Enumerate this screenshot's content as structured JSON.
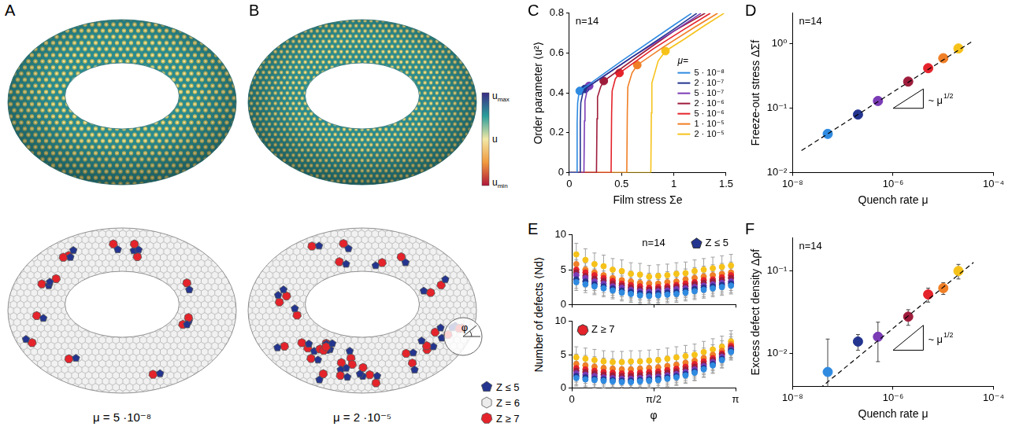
{
  "tori": {
    "panels": [
      {
        "label": "A",
        "caption": "μ = 5 ·10⁻⁸"
      },
      {
        "label": "B",
        "caption": "μ = 2 ·10⁻⁵"
      }
    ],
    "colorbar": {
      "labels": [
        "umax",
        "u",
        "umin"
      ]
    },
    "defect_legend": [
      {
        "label": "Z ≤ 5",
        "color": "#23358f",
        "marker": "pentagon"
      },
      {
        "label": "Z = 6",
        "color": "#ececec",
        "marker": "hexagon"
      },
      {
        "label": "Z ≥ 7",
        "color": "#e5232b",
        "marker": "heptagon"
      }
    ],
    "angle_label": "φ"
  },
  "chart_data": [
    {
      "panel": "C",
      "type": "line",
      "annotations": [
        "n=14"
      ],
      "xlabel": "Film stress Σe",
      "ylabel": "Order parameter ⟨u²⟩",
      "xlim": [
        0,
        1.5
      ],
      "xticks": [
        0,
        0.5,
        1,
        1.5
      ],
      "ylim": [
        0,
        0.8
      ],
      "yticks": [
        0,
        0.2,
        0.4,
        0.6,
        0.8
      ],
      "legend": "right",
      "legend_title": "μ=",
      "marker": "circle",
      "series": [
        {
          "name": "5 · 10⁻⁸",
          "color": "#2f8ae0",
          "x": [
            0,
            0.07,
            0.075,
            0.08,
            0.09,
            0.1,
            0.5,
            1,
            1.17
          ],
          "values": [
            0,
            0,
            0.25,
            0.35,
            0.39,
            0.41,
            0.56,
            0.74,
            0.8
          ],
          "freeze_out": {
            "x": 0.1,
            "value": 0.41
          }
        },
        {
          "name": "2 · 10⁻⁷",
          "color": "#23358f",
          "x": [
            0,
            0.1,
            0.105,
            0.11,
            0.13,
            0.15,
            0.6,
            1,
            1.22
          ],
          "values": [
            0,
            0,
            0.25,
            0.35,
            0.4,
            0.42,
            0.58,
            0.72,
            0.8
          ],
          "freeze_out": {
            "x": 0.15,
            "value": 0.42
          }
        },
        {
          "name": "5 · 10⁻⁷",
          "color": "#7a3bb5",
          "x": [
            0,
            0.14,
            0.145,
            0.15,
            0.17,
            0.19,
            0.6,
            1,
            1.26
          ],
          "values": [
            0,
            0,
            0.26,
            0.36,
            0.41,
            0.435,
            0.58,
            0.71,
            0.8
          ],
          "freeze_out": {
            "x": 0.19,
            "value": 0.435
          }
        },
        {
          "name": "2 · 10⁻⁶",
          "color": "#9e1c3b",
          "x": [
            0,
            0.26,
            0.265,
            0.27,
            0.3,
            0.33,
            0.7,
            1,
            1.3
          ],
          "values": [
            0,
            0,
            0.27,
            0.38,
            0.43,
            0.46,
            0.6,
            0.71,
            0.8
          ],
          "freeze_out": {
            "x": 0.33,
            "value": 0.46
          }
        },
        {
          "name": "5 · 10⁻⁶",
          "color": "#e5232b",
          "x": [
            0,
            0.4,
            0.405,
            0.41,
            0.44,
            0.48,
            0.8,
            1.1,
            1.35
          ],
          "values": [
            0,
            0,
            0.3,
            0.41,
            0.47,
            0.5,
            0.62,
            0.72,
            0.8
          ],
          "freeze_out": {
            "x": 0.48,
            "value": 0.5
          }
        },
        {
          "name": "1 · 10⁻⁵",
          "color": "#f07f26",
          "x": [
            0,
            0.55,
            0.555,
            0.56,
            0.6,
            0.65,
            0.9,
            1.2,
            1.42
          ],
          "values": [
            0,
            0,
            0.3,
            0.43,
            0.5,
            0.54,
            0.63,
            0.73,
            0.8
          ],
          "freeze_out": {
            "x": 0.65,
            "value": 0.54
          }
        },
        {
          "name": "2 · 10⁻⁵",
          "color": "#f6c21a",
          "x": [
            0,
            0.78,
            0.785,
            0.79,
            0.85,
            0.92,
            1.1,
            1.3,
            1.48
          ],
          "values": [
            0,
            0,
            0.3,
            0.45,
            0.56,
            0.61,
            0.67,
            0.74,
            0.8
          ],
          "freeze_out": {
            "x": 0.92,
            "value": 0.61
          }
        }
      ]
    },
    {
      "panel": "D",
      "type": "scatter",
      "log": true,
      "annotations": [
        "n=14"
      ],
      "xlabel": "Quench rate μ",
      "ylabel": "Freeze-out stress ΔΣf",
      "xlim": [
        1e-08,
        0.0001
      ],
      "xticks": [
        {
          "value": 1e-08,
          "label": "10⁻⁸"
        },
        {
          "value": 1e-06,
          "label": "10⁻⁶"
        },
        {
          "value": 0.0001,
          "label": "10⁻⁴"
        }
      ],
      "ylim": [
        0.01,
        3
      ],
      "yticks": [
        {
          "value": 0.01,
          "label": "10⁻²"
        },
        {
          "value": 0.1,
          "label": "10⁻¹"
        },
        {
          "value": 1,
          "label": "10⁰"
        }
      ],
      "marker": "circle",
      "x": [
        5e-08,
        2e-07,
        5e-07,
        2e-06,
        5e-06,
        1e-05,
        2e-05
      ],
      "values": [
        0.04,
        0.08,
        0.13,
        0.26,
        0.42,
        0.6,
        0.85
      ],
      "colors": [
        "#2f8ae0",
        "#23358f",
        "#7a3bb5",
        "#9e1c3b",
        "#e5232b",
        "#f07f26",
        "#f6c21a"
      ],
      "fit": {
        "x": [
          1.5e-08,
          4e-05
        ],
        "values": [
          0.022,
          1.13
        ],
        "line_style": "dashed",
        "color": "#000000"
      },
      "slope_triangle": {
        "x": [
          1e-06,
          4e-06
        ],
        "values": [
          0.1,
          0.2
        ],
        "label": "~ μ",
        "superscript": "1/2"
      }
    },
    {
      "panel": "E",
      "type": "scatter",
      "annotations": [
        "n=14"
      ],
      "xlabel": "φ",
      "ylabel": "Number of defects ⟨Nd⟩",
      "x": [
        0.087,
        0.262,
        0.436,
        0.611,
        0.785,
        0.96,
        1.134,
        1.309,
        1.484,
        1.658,
        1.833,
        2.007,
        2.182,
        2.356,
        2.531,
        2.705,
        2.88,
        3.054
      ],
      "xlim": [
        0,
        3.1416
      ],
      "xticks": [
        0,
        {
          "value": 1.5708,
          "label": "π/2"
        },
        {
          "value": 3.1416,
          "label": "π"
        }
      ],
      "ylim": [
        0,
        10
      ],
      "yticks": [
        0,
        5,
        10
      ],
      "marker": "circle",
      "subplots": [
        {
          "title": "Z ≤ 5",
          "color": "#23358f",
          "marker": "pentagon",
          "series": [
            {
              "color": "#2f8ae0",
              "values": [
                3.2,
                2.9,
                2.6,
                2.3,
                2.0,
                1.7,
                1.5,
                1.3,
                1.2,
                1.3,
                1.4,
                1.5,
                1.7,
                1.9,
                2.1,
                2.3,
                2.5,
                2.7
              ],
              "error": 1.2
            },
            {
              "color": "#23358f",
              "values": [
                3.6,
                3.3,
                2.9,
                2.6,
                2.3,
                2.0,
                1.8,
                1.6,
                1.5,
                1.6,
                1.7,
                1.8,
                2.0,
                2.2,
                2.4,
                2.6,
                2.8,
                3.0
              ],
              "error": 1.3
            },
            {
              "color": "#7a3bb5",
              "values": [
                4.2,
                3.8,
                3.3,
                3.0,
                2.6,
                2.4,
                2.1,
                1.9,
                1.8,
                1.9,
                2.0,
                2.2,
                2.3,
                2.5,
                2.7,
                2.9,
                3.1,
                3.3
              ],
              "error": 1.3
            },
            {
              "color": "#9e1c3b",
              "values": [
                4.6,
                4.1,
                3.7,
                3.4,
                3.0,
                2.7,
                2.4,
                2.2,
                2.1,
                2.2,
                2.3,
                2.5,
                2.6,
                2.9,
                3.1,
                3.3,
                3.5,
                3.8
              ],
              "error": 1.4
            },
            {
              "color": "#e5232b",
              "values": [
                5.0,
                4.6,
                4.2,
                3.8,
                3.4,
                3.0,
                2.8,
                2.6,
                2.4,
                2.5,
                2.6,
                2.8,
                3.0,
                3.2,
                3.5,
                3.6,
                3.9,
                4.2
              ],
              "error": 1.4
            },
            {
              "color": "#f07f26",
              "values": [
                5.8,
                5.0,
                4.6,
                4.2,
                3.8,
                3.5,
                3.3,
                3.1,
                3.0,
                3.0,
                3.2,
                3.3,
                3.6,
                3.8,
                4.0,
                4.2,
                4.4,
                4.6
              ],
              "error": 1.5
            },
            {
              "color": "#f6c21a",
              "values": [
                7.2,
                6.4,
                5.8,
                5.5,
                5.0,
                4.8,
                4.4,
                4.3,
                4.0,
                4.1,
                4.2,
                4.4,
                4.5,
                4.8,
                5.0,
                5.2,
                5.4,
                5.6
              ],
              "error": 1.6
            }
          ]
        },
        {
          "title": "Z ≥ 7",
          "color": "#e5232b",
          "marker": "heptagon",
          "series": [
            {
              "color": "#2f8ae0",
              "values": [
                1.5,
                1.3,
                1.2,
                1.1,
                1.0,
                0.9,
                0.9,
                1.0,
                1.1,
                1.2,
                1.4,
                1.6,
                1.9,
                2.3,
                2.8,
                3.4,
                4.2,
                5.4
              ],
              "error": 1.2
            },
            {
              "color": "#23358f",
              "values": [
                1.8,
                1.6,
                1.4,
                1.3,
                1.2,
                1.1,
                1.1,
                1.2,
                1.3,
                1.4,
                1.6,
                1.8,
                2.1,
                2.5,
                3.0,
                3.6,
                4.4,
                5.6
              ],
              "error": 1.3
            },
            {
              "color": "#7a3bb5",
              "values": [
                2.2,
                2.0,
                1.8,
                1.6,
                1.5,
                1.4,
                1.4,
                1.5,
                1.6,
                1.7,
                1.9,
                2.1,
                2.4,
                2.8,
                3.3,
                3.9,
                4.7,
                5.8
              ],
              "error": 1.3
            },
            {
              "color": "#9e1c3b",
              "values": [
                2.6,
                2.4,
                2.2,
                2.0,
                1.9,
                1.8,
                1.8,
                1.9,
                2.0,
                2.1,
                2.3,
                2.5,
                2.8,
                3.2,
                3.6,
                4.2,
                5.0,
                6.0
              ],
              "error": 1.4
            },
            {
              "color": "#e5232b",
              "values": [
                3.0,
                2.8,
                2.6,
                2.4,
                2.3,
                2.2,
                2.2,
                2.3,
                2.4,
                2.5,
                2.7,
                2.9,
                3.2,
                3.6,
                4.0,
                4.5,
                5.2,
                6.3
              ],
              "error": 1.4
            },
            {
              "color": "#f07f26",
              "values": [
                3.6,
                3.4,
                3.2,
                3.0,
                2.9,
                2.8,
                2.8,
                2.9,
                3.0,
                3.1,
                3.3,
                3.5,
                3.8,
                4.1,
                4.5,
                5.0,
                5.6,
                6.6
              ],
              "error": 1.5
            },
            {
              "color": "#f6c21a",
              "values": [
                4.6,
                4.4,
                4.2,
                4.0,
                3.9,
                3.9,
                4.0,
                4.0,
                4.1,
                4.2,
                4.4,
                4.6,
                4.8,
                5.0,
                5.4,
                5.8,
                6.2,
                7.0
              ],
              "error": 1.6
            }
          ]
        }
      ]
    },
    {
      "panel": "F",
      "type": "scatter",
      "log": true,
      "annotations": [
        "n=14"
      ],
      "xlabel": "Quench rate μ",
      "ylabel": "Excess defect density Δρf",
      "xlim": [
        1e-08,
        0.0001
      ],
      "xticks": [
        {
          "value": 1e-08,
          "label": "10⁻⁸"
        },
        {
          "value": 1e-06,
          "label": "10⁻⁶"
        },
        {
          "value": 0.0001,
          "label": "10⁻⁴"
        }
      ],
      "ylim": [
        0.004,
        0.25
      ],
      "yticks": [
        {
          "value": 0.01,
          "label": "10⁻²"
        },
        {
          "value": 0.1,
          "label": "10⁻¹"
        }
      ],
      "marker": "circle",
      "x": [
        5e-08,
        2e-07,
        5e-07,
        2e-06,
        5e-06,
        1e-05,
        2e-05
      ],
      "values": [
        0.006,
        0.014,
        0.016,
        0.028,
        0.052,
        0.062,
        0.1
      ],
      "errors": [
        0.009,
        0.003,
        0.008,
        0.006,
        0.01,
        0.01,
        0.02
      ],
      "colors": [
        "#2f8ae0",
        "#23358f",
        "#7a3bb5",
        "#9e1c3b",
        "#e5232b",
        "#f07f26",
        "#f6c21a"
      ],
      "fit": {
        "x": [
          1.5e-08,
          4e-05
        ],
        "values": [
          0.0025,
          0.127
        ],
        "line_style": "dashed",
        "color": "#000000"
      },
      "slope_triangle": {
        "x": [
          1e-06,
          4e-06
        ],
        "values": [
          0.011,
          0.022
        ],
        "label": "~ μ",
        "superscript": "1/2"
      }
    }
  ]
}
